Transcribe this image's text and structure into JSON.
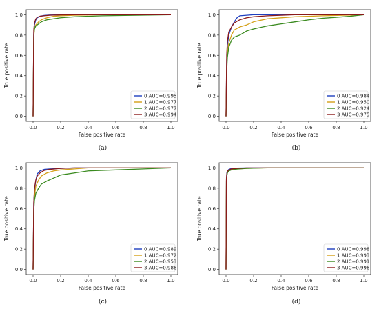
{
  "chart_data": [
    {
      "type": "line",
      "caption": "(a)",
      "xlabel": "False positive rate",
      "ylabel": "True positive rate",
      "xlim": [
        0,
        1
      ],
      "ylim": [
        0,
        1
      ],
      "xticks": [
        "0.0",
        "0.2",
        "0.4",
        "0.6",
        "0.8",
        "1.0"
      ],
      "yticks": [
        "0.0",
        "0.2",
        "0.4",
        "0.6",
        "0.8",
        "1.0"
      ],
      "legend_position": "lower-right",
      "series": [
        {
          "name": "0 AUC=0.995",
          "color": "#1f3fbf",
          "x": [
            0,
            0.005,
            0.01,
            0.02,
            0.03,
            0.05,
            0.08,
            0.12,
            0.2,
            0.3,
            0.5,
            1.0
          ],
          "y": [
            0,
            0.82,
            0.9,
            0.95,
            0.97,
            0.985,
            0.993,
            0.997,
            0.999,
            1.0,
            1.0,
            1.0
          ]
        },
        {
          "name": "1 AUC=0.977",
          "color": "#d4a017",
          "x": [
            0,
            0.005,
            0.01,
            0.02,
            0.04,
            0.06,
            0.1,
            0.15,
            0.2,
            0.3,
            0.5,
            1.0
          ],
          "y": [
            0,
            0.78,
            0.86,
            0.9,
            0.93,
            0.95,
            0.97,
            0.985,
            0.99,
            0.995,
            1.0,
            1.0
          ]
        },
        {
          "name": "2 AUC=0.977",
          "color": "#3a8a1f",
          "x": [
            0,
            0.005,
            0.01,
            0.02,
            0.04,
            0.06,
            0.1,
            0.15,
            0.2,
            0.3,
            0.5,
            1.0
          ],
          "y": [
            0,
            0.8,
            0.86,
            0.89,
            0.91,
            0.93,
            0.95,
            0.96,
            0.97,
            0.98,
            0.99,
            1.0
          ]
        },
        {
          "name": "3 AUC=0.994",
          "color": "#8b1a1a",
          "x": [
            0,
            0.005,
            0.01,
            0.02,
            0.03,
            0.05,
            0.08,
            0.12,
            0.2,
            0.3,
            0.5,
            1.0
          ],
          "y": [
            0,
            0.85,
            0.92,
            0.96,
            0.975,
            0.985,
            0.99,
            0.995,
            0.998,
            1.0,
            1.0,
            1.0
          ]
        }
      ]
    },
    {
      "type": "line",
      "caption": "(b)",
      "xlabel": "False positive rate",
      "ylabel": "True positive rate",
      "xlim": [
        0,
        1
      ],
      "ylim": [
        0,
        1
      ],
      "xticks": [
        "0.0",
        "0.2",
        "0.4",
        "0.6",
        "0.8",
        "1.0"
      ],
      "yticks": [
        "0.0",
        "0.2",
        "0.4",
        "0.6",
        "0.8",
        "1.0"
      ],
      "legend_position": "lower-right",
      "series": [
        {
          "name": "0 AUC=0.984",
          "color": "#1f3fbf",
          "x": [
            0,
            0.005,
            0.01,
            0.02,
            0.04,
            0.06,
            0.08,
            0.1,
            0.2,
            0.4,
            1.0
          ],
          "y": [
            0,
            0.55,
            0.7,
            0.8,
            0.88,
            0.93,
            0.97,
            0.99,
            1.0,
            1.0,
            1.0
          ]
        },
        {
          "name": "1 AUC=0.950",
          "color": "#d4a017",
          "x": [
            0,
            0.005,
            0.01,
            0.02,
            0.04,
            0.06,
            0.1,
            0.15,
            0.2,
            0.3,
            0.5,
            0.7,
            1.0
          ],
          "y": [
            0,
            0.5,
            0.62,
            0.72,
            0.8,
            0.85,
            0.88,
            0.9,
            0.93,
            0.96,
            0.98,
            0.99,
            1.0
          ]
        },
        {
          "name": "2 AUC=0.924",
          "color": "#3a8a1f",
          "x": [
            0,
            0.005,
            0.01,
            0.02,
            0.04,
            0.06,
            0.1,
            0.15,
            0.2,
            0.3,
            0.4,
            0.5,
            0.6,
            0.7,
            0.8,
            0.9,
            1.0
          ],
          "y": [
            0,
            0.45,
            0.58,
            0.68,
            0.75,
            0.78,
            0.8,
            0.84,
            0.86,
            0.89,
            0.91,
            0.93,
            0.95,
            0.965,
            0.975,
            0.985,
            1.0
          ]
        },
        {
          "name": "3 AUC=0.975",
          "color": "#8b1a1a",
          "x": [
            0,
            0.005,
            0.01,
            0.02,
            0.04,
            0.06,
            0.1,
            0.15,
            0.2,
            0.3,
            0.5,
            1.0
          ],
          "y": [
            0,
            0.6,
            0.74,
            0.83,
            0.88,
            0.92,
            0.95,
            0.97,
            0.98,
            0.99,
            1.0,
            1.0
          ]
        }
      ]
    },
    {
      "type": "line",
      "caption": "(c)",
      "xlabel": "False positive rate",
      "ylabel": "True positive rate",
      "xlim": [
        0,
        1
      ],
      "ylim": [
        0,
        1
      ],
      "xticks": [
        "0.0",
        "0.2",
        "0.4",
        "0.6",
        "0.8",
        "1.0"
      ],
      "yticks": [
        "0.0",
        "0.2",
        "0.4",
        "0.6",
        "0.8",
        "1.0"
      ],
      "legend_position": "lower-right",
      "series": [
        {
          "name": "0 AUC=0.989",
          "color": "#1f3fbf",
          "x": [
            0,
            0.005,
            0.01,
            0.02,
            0.03,
            0.05,
            0.08,
            0.12,
            0.2,
            0.3,
            1.0
          ],
          "y": [
            0,
            0.65,
            0.78,
            0.88,
            0.94,
            0.97,
            0.985,
            0.99,
            0.995,
            1.0,
            1.0
          ]
        },
        {
          "name": "1 AUC=0.972",
          "color": "#d4a017",
          "x": [
            0,
            0.005,
            0.01,
            0.02,
            0.04,
            0.06,
            0.1,
            0.15,
            0.2,
            0.3,
            0.4,
            1.0
          ],
          "y": [
            0,
            0.6,
            0.72,
            0.82,
            0.88,
            0.92,
            0.95,
            0.97,
            0.98,
            0.99,
            1.0,
            1.0
          ]
        },
        {
          "name": "2 AUC=0.953",
          "color": "#3a8a1f",
          "x": [
            0,
            0.005,
            0.01,
            0.02,
            0.04,
            0.06,
            0.1,
            0.15,
            0.2,
            0.3,
            0.4,
            0.6,
            0.8,
            1.0
          ],
          "y": [
            0,
            0.58,
            0.68,
            0.75,
            0.8,
            0.84,
            0.87,
            0.9,
            0.93,
            0.95,
            0.97,
            0.98,
            0.99,
            1.0
          ]
        },
        {
          "name": "3 AUC=0.986",
          "color": "#8b1a1a",
          "x": [
            0,
            0.005,
            0.01,
            0.02,
            0.03,
            0.05,
            0.08,
            0.12,
            0.2,
            0.3,
            1.0
          ],
          "y": [
            0,
            0.66,
            0.8,
            0.88,
            0.92,
            0.95,
            0.975,
            0.985,
            0.995,
            1.0,
            1.0
          ]
        }
      ]
    },
    {
      "type": "line",
      "caption": "(d)",
      "xlabel": "False positive rate",
      "ylabel": "True positive rate",
      "xlim": [
        0,
        1
      ],
      "ylim": [
        0,
        1
      ],
      "xticks": [
        "0.0",
        "0.2",
        "0.4",
        "0.6",
        "0.8",
        "1.0"
      ],
      "yticks": [
        "0.0",
        "0.2",
        "0.4",
        "0.6",
        "0.8",
        "1.0"
      ],
      "legend_position": "lower-right",
      "series": [
        {
          "name": "0 AUC=0.998",
          "color": "#1f3fbf",
          "x": [
            0,
            0.003,
            0.006,
            0.01,
            0.02,
            0.04,
            0.08,
            0.15,
            0.3,
            1.0
          ],
          "y": [
            0,
            0.9,
            0.95,
            0.97,
            0.985,
            0.995,
            0.998,
            1.0,
            1.0,
            1.0
          ]
        },
        {
          "name": "1 AUC=0.993",
          "color": "#d4a017",
          "x": [
            0,
            0.003,
            0.006,
            0.01,
            0.02,
            0.04,
            0.08,
            0.15,
            0.3,
            1.0
          ],
          "y": [
            0,
            0.88,
            0.93,
            0.96,
            0.975,
            0.985,
            0.99,
            0.995,
            1.0,
            1.0
          ]
        },
        {
          "name": "2 AUC=0.991",
          "color": "#3a8a1f",
          "x": [
            0,
            0.003,
            0.006,
            0.01,
            0.02,
            0.04,
            0.08,
            0.15,
            0.3,
            1.0
          ],
          "y": [
            0,
            0.87,
            0.92,
            0.95,
            0.97,
            0.98,
            0.988,
            0.995,
            1.0,
            1.0
          ]
        },
        {
          "name": "3 AUC=0.996",
          "color": "#8b1a1a",
          "x": [
            0,
            0.003,
            0.006,
            0.01,
            0.02,
            0.04,
            0.08,
            0.15,
            0.3,
            1.0
          ],
          "y": [
            0,
            0.89,
            0.94,
            0.965,
            0.98,
            0.99,
            0.995,
            1.0,
            1.0,
            1.0
          ]
        }
      ]
    }
  ]
}
